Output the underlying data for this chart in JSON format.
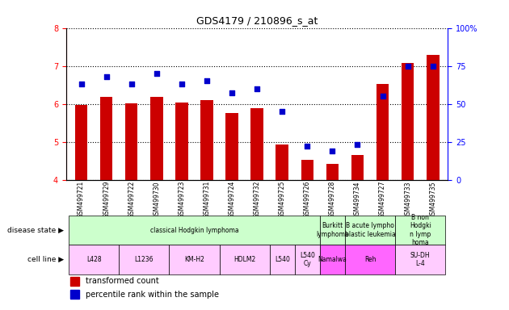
{
  "title": "GDS4179 / 210896_s_at",
  "samples": [
    "GSM499721",
    "GSM499729",
    "GSM499722",
    "GSM499730",
    "GSM499723",
    "GSM499731",
    "GSM499724",
    "GSM499732",
    "GSM499725",
    "GSM499726",
    "GSM499728",
    "GSM499734",
    "GSM499727",
    "GSM499733",
    "GSM499735"
  ],
  "bar_values": [
    5.98,
    6.18,
    6.01,
    6.18,
    6.04,
    6.1,
    5.75,
    5.88,
    4.93,
    4.52,
    4.41,
    4.65,
    6.52,
    7.08,
    7.28
  ],
  "dot_values": [
    63,
    68,
    63,
    70,
    63,
    65,
    57,
    60,
    45,
    22,
    19,
    23,
    55,
    75,
    75
  ],
  "ylim_left": [
    4.0,
    8.0
  ],
  "ylim_right": [
    0,
    100
  ],
  "yticks_left": [
    4,
    5,
    6,
    7,
    8
  ],
  "yticks_right": [
    0,
    25,
    50,
    75,
    100
  ],
  "bar_color": "#cc0000",
  "dot_color": "#0000cc",
  "disease_state_groups": [
    {
      "label": "classical Hodgkin lymphoma",
      "start": 0,
      "end": 10,
      "color": "#ccffcc"
    },
    {
      "label": "Burkitt\nlymphoma",
      "start": 10,
      "end": 11,
      "color": "#ccffcc"
    },
    {
      "label": "B acute lympho\nblastic leukemia",
      "start": 11,
      "end": 13,
      "color": "#ccffcc"
    },
    {
      "label": "B non\nHodgki\nn lymp\nhoma",
      "start": 13,
      "end": 15,
      "color": "#ccffcc"
    }
  ],
  "cell_line_groups": [
    {
      "label": "L428",
      "start": 0,
      "end": 2,
      "color": "#ffccff"
    },
    {
      "label": "L1236",
      "start": 2,
      "end": 4,
      "color": "#ffccff"
    },
    {
      "label": "KM-H2",
      "start": 4,
      "end": 6,
      "color": "#ffccff"
    },
    {
      "label": "HDLM2",
      "start": 6,
      "end": 8,
      "color": "#ffccff"
    },
    {
      "label": "L540",
      "start": 8,
      "end": 9,
      "color": "#ffccff"
    },
    {
      "label": "L540\nCy",
      "start": 9,
      "end": 10,
      "color": "#ffccff"
    },
    {
      "label": "Namalwa",
      "start": 10,
      "end": 11,
      "color": "#ff66ff"
    },
    {
      "label": "Reh",
      "start": 11,
      "end": 13,
      "color": "#ff66ff"
    },
    {
      "label": "SU-DH\nL-4",
      "start": 13,
      "end": 15,
      "color": "#ffccff"
    }
  ]
}
